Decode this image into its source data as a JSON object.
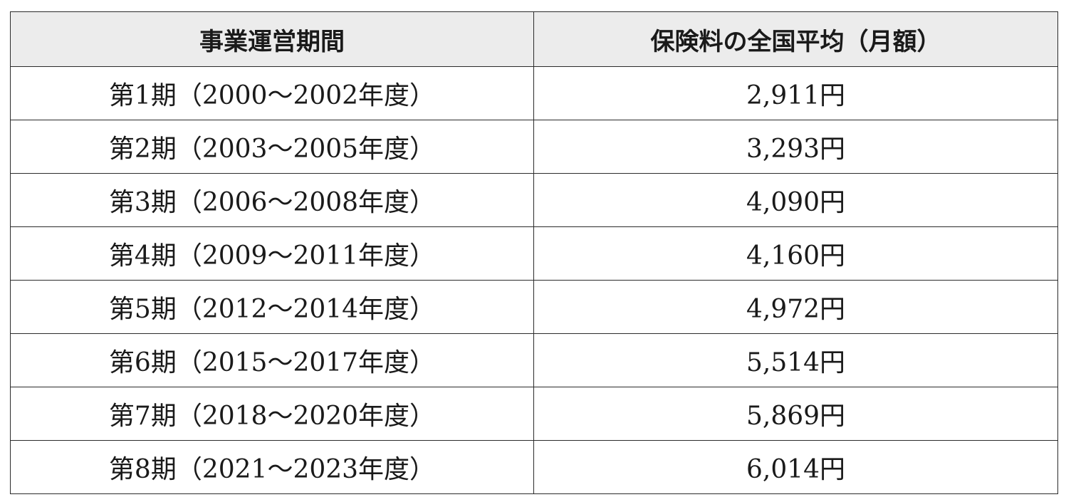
{
  "table": {
    "headers": [
      "事業運営期間",
      "保険料の全国平均（月額）"
    ],
    "rows": [
      [
        "第1期（2000～2002年度）",
        "2,911円"
      ],
      [
        "第2期（2003～2005年度）",
        "3,293円"
      ],
      [
        "第3期（2006～2008年度）",
        "4,090円"
      ],
      [
        "第4期（2009～2011年度）",
        "4,160円"
      ],
      [
        "第5期（2012～2014年度）",
        "4,972円"
      ],
      [
        "第6期（2015～2017年度）",
        "5,514円"
      ],
      [
        "第7期（2018～2020年度）",
        "5,869円"
      ],
      [
        "第8期（2021～2023年度）",
        "6,014円"
      ]
    ]
  }
}
